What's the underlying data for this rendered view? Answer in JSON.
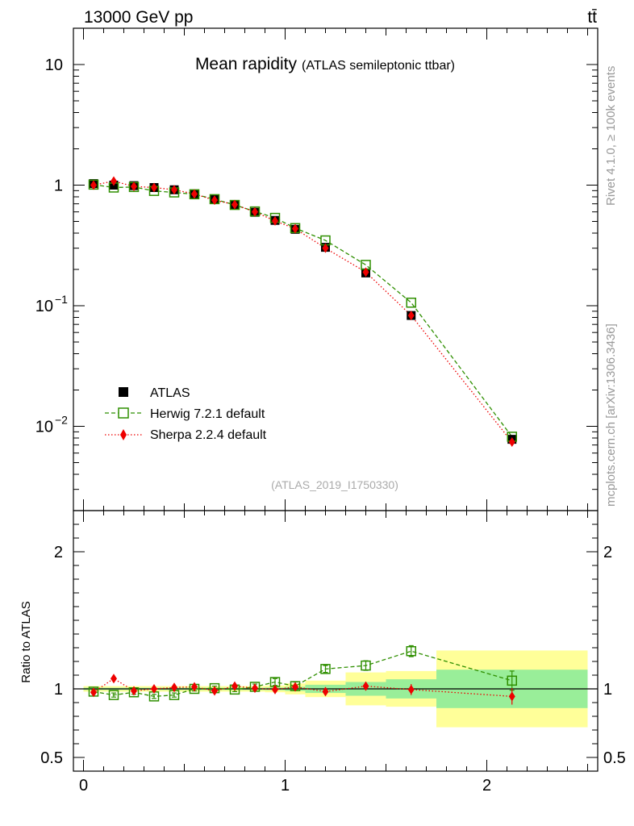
{
  "header": {
    "energy_label": "13000 GeV pp",
    "process_label": "tt̄"
  },
  "side_text": {
    "rivet": "Rivet 4.1.0, ≥ 100k events",
    "mcplots": "mcplots.cern.ch [arXiv:1306.3436]"
  },
  "chart_data": {
    "type": "scatter",
    "title": "Mean rapidity",
    "subtitle": "(ATLAS semileptonic ttbar)",
    "analysis_id": "(ATLAS_2019_I1750330)",
    "main_panel": {
      "yscale": "log",
      "ylim": [
        0.002,
        20
      ],
      "ytick_labels": [
        {
          "value": 10,
          "label": "10"
        },
        {
          "value": 1,
          "label": "1"
        },
        {
          "value": 0.1,
          "label": "10",
          "exp": "−1"
        },
        {
          "value": 0.01,
          "label": "10",
          "exp": "−2"
        }
      ]
    },
    "ratio_panel": {
      "ylabel": "Ratio to ATLAS",
      "ylim": [
        0.4,
        2.3
      ],
      "ytick_labels": [
        {
          "value": 2,
          "label": "2"
        },
        {
          "value": 1,
          "label": "1"
        },
        {
          "value": 0.5,
          "label": "0.5"
        }
      ]
    },
    "xlim": [
      -0.05,
      2.55
    ],
    "xtick_labels": [
      {
        "value": 0,
        "label": "0"
      },
      {
        "value": 1,
        "label": "1"
      },
      {
        "value": 2,
        "label": "2"
      }
    ],
    "bins": [
      [
        0.0,
        0.1
      ],
      [
        0.1,
        0.2
      ],
      [
        0.2,
        0.3
      ],
      [
        0.3,
        0.4
      ],
      [
        0.4,
        0.5
      ],
      [
        0.5,
        0.6
      ],
      [
        0.6,
        0.7
      ],
      [
        0.7,
        0.8
      ],
      [
        0.8,
        0.9
      ],
      [
        0.9,
        1.0
      ],
      [
        1.0,
        1.1
      ],
      [
        1.1,
        1.3
      ],
      [
        1.3,
        1.5
      ],
      [
        1.5,
        1.75
      ],
      [
        1.75,
        2.5
      ]
    ],
    "x": [
      0.05,
      0.15,
      0.25,
      0.35,
      0.45,
      0.55,
      0.65,
      0.75,
      0.85,
      0.95,
      1.05,
      1.2,
      1.4,
      1.625,
      2.125
    ],
    "series": [
      {
        "name": "ATLAS",
        "style": "data",
        "color": "#000000",
        "values": [
          1.03,
          1.0,
          0.99,
          0.955,
          0.915,
          0.84,
          0.76,
          0.685,
          0.595,
          0.51,
          0.43,
          0.305,
          0.187,
          0.083,
          0.0078
        ],
        "ratio_band_stat": [
          0.008,
          0.008,
          0.008,
          0.008,
          0.008,
          0.008,
          0.008,
          0.008,
          0.008,
          0.01,
          0.015,
          0.03,
          0.05,
          0.07,
          0.14
        ],
        "ratio_band_total": [
          0.02,
          0.02,
          0.02,
          0.02,
          0.02,
          0.02,
          0.02,
          0.02,
          0.02,
          0.025,
          0.04,
          0.06,
          0.12,
          0.13,
          0.28
        ]
      },
      {
        "name": "Herwig 7.2.1 default",
        "style": "open-square-dashed",
        "color": "#2f8f00",
        "values": [
          1.01,
          0.955,
          0.965,
          0.895,
          0.87,
          0.84,
          0.765,
          0.685,
          0.605,
          0.535,
          0.44,
          0.348,
          0.218,
          0.106,
          0.0082
        ],
        "ratio": [
          0.98,
          0.955,
          0.975,
          0.945,
          0.955,
          1.0,
          1.005,
          0.995,
          1.015,
          1.05,
          1.02,
          1.145,
          1.17,
          1.275,
          1.06
        ],
        "ratio_err": [
          0.015,
          0.015,
          0.015,
          0.015,
          0.015,
          0.015,
          0.015,
          0.015,
          0.02,
          0.025,
          0.03,
          0.025,
          0.035,
          0.04,
          0.07
        ]
      },
      {
        "name": "Sherpa 2.2.4 default",
        "style": "filled-diamond-dotted",
        "color": "#ee0000",
        "values": [
          1.0,
          1.08,
          0.975,
          0.955,
          0.915,
          0.845,
          0.75,
          0.69,
          0.6,
          0.505,
          0.435,
          0.3,
          0.19,
          0.083,
          0.0074
        ],
        "ratio": [
          0.975,
          1.075,
          0.985,
          1.0,
          1.01,
          1.015,
          0.985,
          1.02,
          1.005,
          0.995,
          1.015,
          0.98,
          1.02,
          0.995,
          0.945
        ],
        "ratio_err": [
          0.012,
          0.012,
          0.012,
          0.012,
          0.012,
          0.012,
          0.012,
          0.012,
          0.015,
          0.02,
          0.025,
          0.02,
          0.03,
          0.04,
          0.06
        ]
      }
    ],
    "colors": {
      "band_total": "#ffff99",
      "band_stat": "#99ee99",
      "herwig": "#2f8f00",
      "sherpa": "#ee0000"
    }
  }
}
